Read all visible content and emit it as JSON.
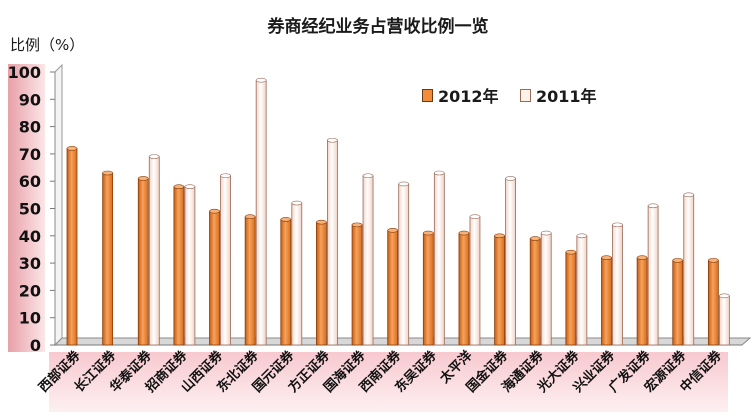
{
  "chart_data": {
    "type": "bar",
    "title": "券商经纪业务占营收比例一览",
    "ylabel": "比例（%）",
    "xlabel": "",
    "ylim": [
      0,
      100
    ],
    "yticks": [
      0,
      10,
      20,
      30,
      40,
      50,
      60,
      70,
      80,
      90,
      100
    ],
    "grid": false,
    "legend": "top-right",
    "categories": [
      "西部证券",
      "长江证券",
      "华泰证券",
      "招商证券",
      "山西证券",
      "东北证券",
      "国元证券",
      "方正证券",
      "国海证券",
      "西南证券",
      "东吴证券",
      "太平洋",
      "国金证券",
      "海通证券",
      "光大证券",
      "兴业证券",
      "广发证券",
      "宏源证券",
      "中信证券"
    ],
    "series": [
      {
        "name": "2012年",
        "color": "#f08c3a",
        "values": [
          72,
          63,
          61,
          58,
          49,
          47,
          46,
          45,
          44,
          42,
          41,
          41,
          40,
          39,
          34,
          32,
          32,
          31,
          31
        ]
      },
      {
        "name": "2011年",
        "color": "#fdf1ea",
        "values": [
          null,
          null,
          69,
          58,
          62,
          97,
          52,
          75,
          62,
          59,
          63,
          47,
          61,
          41,
          40,
          44,
          51,
          55,
          18
        ]
      }
    ]
  }
}
